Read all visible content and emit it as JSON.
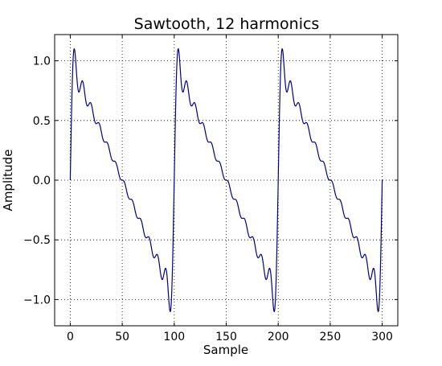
{
  "chart_data": {
    "type": "line",
    "title": "Sawtooth, 12 harmonics",
    "xlabel": "Sample",
    "ylabel": "Amplitude",
    "xlim": [
      -15,
      315
    ],
    "ylim": [
      -1.22,
      1.22
    ],
    "xticks": [
      0,
      50,
      100,
      150,
      200,
      250,
      300
    ],
    "xtick_labels": [
      "0",
      "50",
      "100",
      "150",
      "200",
      "250",
      "300"
    ],
    "yticks": [
      -1.0,
      -0.5,
      0.0,
      0.5,
      1.0
    ],
    "ytick_labels": [
      "−1.0",
      "−0.5",
      "0.0",
      "0.5",
      "1.0"
    ],
    "grid": true,
    "legend": "none",
    "series": [
      {
        "color": "#00008b",
        "harmonics": 12,
        "period": 100,
        "x_start": 0,
        "x_end": 300
      }
    ]
  }
}
